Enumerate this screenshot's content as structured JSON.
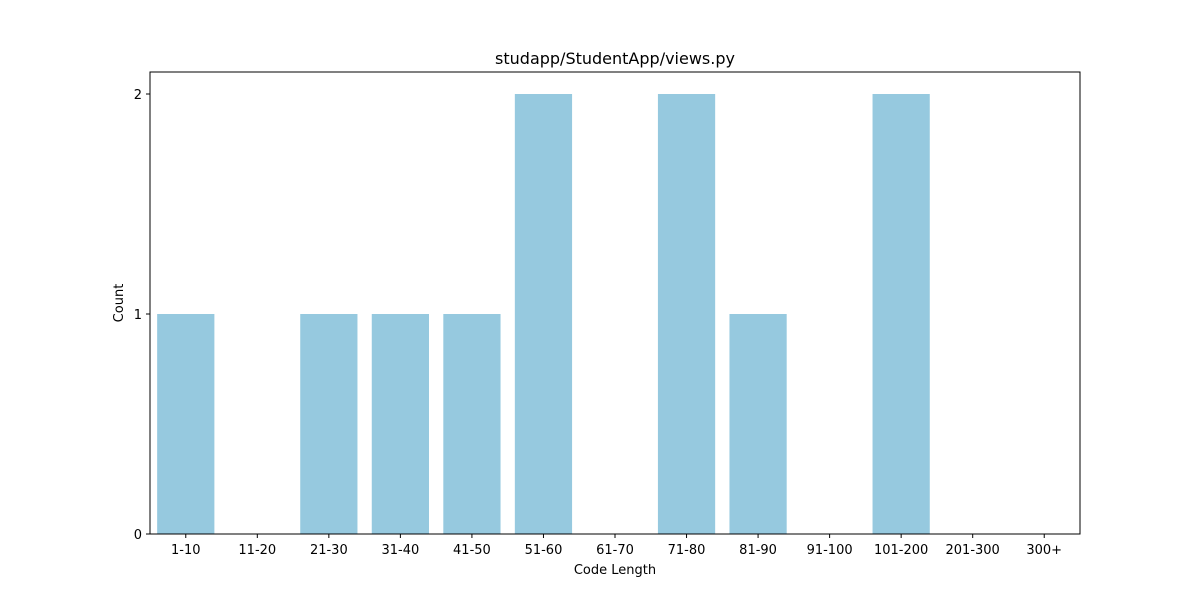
{
  "chart_data": {
    "type": "bar",
    "title": "studapp/StudentApp/views.py",
    "xlabel": "Code Length",
    "ylabel": "Count",
    "categories": [
      "1-10",
      "11-20",
      "21-30",
      "31-40",
      "41-50",
      "51-60",
      "61-70",
      "71-80",
      "81-90",
      "91-100",
      "101-200",
      "201-300",
      "300+"
    ],
    "values": [
      1,
      0,
      1,
      1,
      1,
      2,
      0,
      2,
      1,
      0,
      2,
      0,
      0
    ],
    "ylim": [
      0,
      2.1
    ],
    "yticks": [
      "0",
      "1",
      "2"
    ],
    "bar_color": "#96c9df",
    "grid": false,
    "legend": "none"
  }
}
